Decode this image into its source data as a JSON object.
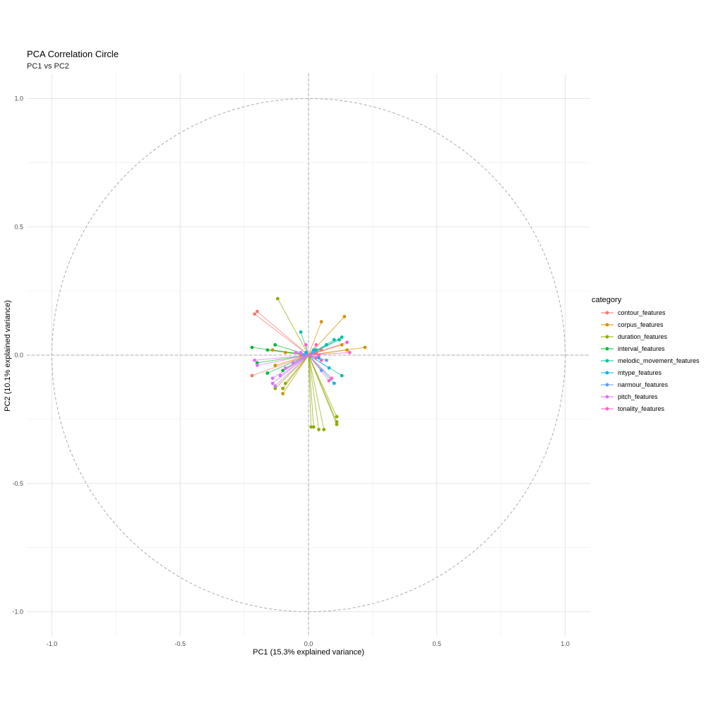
{
  "chart_data": {
    "type": "scatter",
    "title": "PCA Correlation Circle",
    "subtitle": "PC1 vs PC2",
    "xlabel": "PC1 (15.3% explained variance)",
    "ylabel": "PC2 (10.1% explained variance)",
    "xlim": [
      -1.1,
      1.1
    ],
    "ylim": [
      -1.1,
      1.1
    ],
    "x_ticks": [
      -1.0,
      -0.5,
      0.0,
      0.5,
      1.0
    ],
    "y_ticks": [
      -1.0,
      -0.5,
      0.0,
      0.5,
      1.0
    ],
    "x_tick_labels": [
      "-1.0",
      "-0.5",
      "0.0",
      "0.5",
      "1.0"
    ],
    "y_tick_labels": [
      "-1.0",
      "-0.5",
      "0.0",
      "0.5",
      "1.0"
    ],
    "grid": true,
    "unit_circle": true,
    "segments_from_origin": true,
    "legend_title": "category",
    "legend_position": "right",
    "series": [
      {
        "name": "contour_features",
        "color": "#F8766D",
        "points": [
          [
            -0.2,
            0.17
          ],
          [
            -0.21,
            0.16
          ],
          [
            -0.22,
            -0.08
          ],
          [
            0.05,
            0.02
          ],
          [
            0.03,
            0.01
          ],
          [
            -0.03,
            0.0
          ]
        ]
      },
      {
        "name": "corpus_features",
        "color": "#D39200",
        "points": [
          [
            0.14,
            0.15
          ],
          [
            0.22,
            0.03
          ],
          [
            0.05,
            0.13
          ],
          [
            0.15,
            0.02
          ],
          [
            0.13,
            0.04
          ],
          [
            -0.1,
            -0.15
          ],
          [
            -0.13,
            -0.04
          ],
          [
            -0.09,
            0.01
          ],
          [
            -0.14,
            0.02
          ]
        ]
      },
      {
        "name": "duration_features",
        "color": "#93AA00",
        "points": [
          [
            -0.12,
            0.22
          ],
          [
            0.01,
            -0.28
          ],
          [
            0.02,
            -0.28
          ],
          [
            0.04,
            -0.29
          ],
          [
            0.06,
            -0.29
          ],
          [
            0.11,
            -0.24
          ],
          [
            0.11,
            -0.26
          ],
          [
            0.11,
            -0.27
          ],
          [
            -0.09,
            -0.11
          ],
          [
            -0.1,
            -0.13
          ],
          [
            -0.13,
            -0.13
          ]
        ]
      },
      {
        "name": "interval_features",
        "color": "#00BA38",
        "points": [
          [
            -0.22,
            0.03
          ],
          [
            -0.16,
            0.02
          ],
          [
            -0.13,
            0.04
          ],
          [
            -0.2,
            -0.03
          ],
          [
            -0.16,
            -0.07
          ],
          [
            -0.1,
            -0.06
          ]
        ]
      },
      {
        "name": "melodic_movement_features",
        "color": "#00C19F",
        "points": [
          [
            -0.03,
            0.09
          ],
          [
            0.1,
            0.06
          ],
          [
            0.12,
            0.06
          ],
          [
            0.13,
            0.07
          ],
          [
            0.13,
            -0.08
          ],
          [
            0.07,
            0.04
          ],
          [
            0.03,
            0.02
          ]
        ]
      },
      {
        "name": "mtype_features",
        "color": "#00B9E3",
        "points": [
          [
            0.1,
            -0.11
          ],
          [
            0.08,
            -0.05
          ],
          [
            0.02,
            0.02
          ],
          [
            -0.01,
            0.01
          ],
          [
            0.04,
            -0.01
          ]
        ]
      },
      {
        "name": "narmour_features",
        "color": "#619CFF",
        "points": [
          [
            0.07,
            -0.02
          ],
          [
            0.05,
            -0.06
          ],
          [
            0.02,
            0.01
          ],
          [
            -0.02,
            0.0
          ]
        ]
      },
      {
        "name": "pitch_features",
        "color": "#DB72FB",
        "points": [
          [
            -0.21,
            -0.02
          ],
          [
            -0.2,
            -0.04
          ],
          [
            -0.14,
            -0.09
          ],
          [
            -0.14,
            -0.11
          ],
          [
            -0.13,
            -0.12
          ],
          [
            -0.11,
            -0.08
          ],
          [
            -0.09,
            -0.05
          ],
          [
            -0.06,
            -0.03
          ],
          [
            -0.05,
            0.01
          ],
          [
            -0.03,
            0.01
          ],
          [
            -0.02,
            -0.01
          ]
        ]
      },
      {
        "name": "tonality_features",
        "color": "#FF61C3",
        "points": [
          [
            0.15,
            0.05
          ],
          [
            0.16,
            0.01
          ],
          [
            0.08,
            -0.1
          ],
          [
            0.09,
            -0.09
          ],
          [
            -0.01,
            0.04
          ],
          [
            0.03,
            0.04
          ],
          [
            0.03,
            -0.01
          ],
          [
            0.04,
            0.0
          ],
          [
            0.05,
            -0.02
          ]
        ]
      }
    ]
  }
}
